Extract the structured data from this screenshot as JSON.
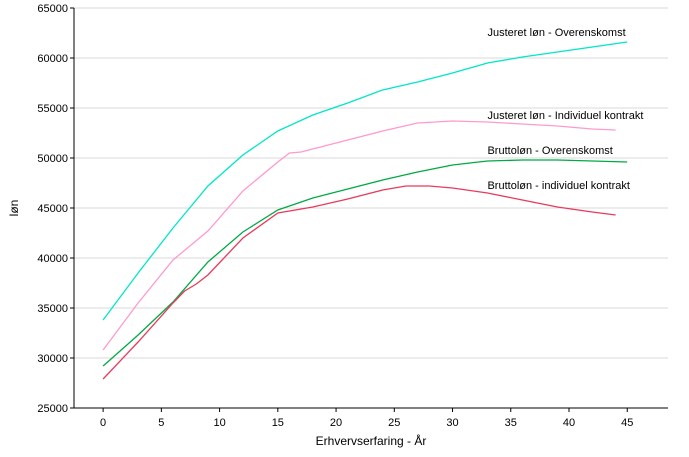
{
  "chart_data": {
    "type": "line",
    "xlabel": "Erhvervserfaring - År",
    "ylabel": "løn",
    "xlim": [
      -2.5,
      48.5
    ],
    "ylim": [
      25000,
      65000
    ],
    "xticks": [
      0,
      5,
      10,
      15,
      20,
      25,
      30,
      35,
      40,
      45
    ],
    "yticks": [
      25000,
      30000,
      35000,
      40000,
      45000,
      50000,
      55000,
      60000,
      65000
    ],
    "xtick_labels": [
      "0",
      "5",
      "10",
      "15",
      "20",
      "25",
      "30",
      "35",
      "40",
      "45"
    ],
    "ytick_labels": [
      "25000",
      "30000",
      "35000",
      "40000",
      "45000",
      "50000",
      "55000",
      "60000",
      "65000"
    ],
    "grid": "horizontal",
    "series": [
      {
        "name": "Justeret løn - Overenskomst",
        "color": "#00e6c8",
        "x": [
          0,
          3,
          6,
          9,
          12,
          15,
          18,
          21,
          24,
          27,
          30,
          33,
          36,
          39,
          42,
          45
        ],
        "values": [
          33800,
          38500,
          43000,
          47200,
          50300,
          52700,
          54300,
          55500,
          56800,
          57600,
          58500,
          59500,
          60100,
          60600,
          61100,
          61600
        ]
      },
      {
        "name": "Justeret løn - Individuel kontrakt",
        "color": "#ff9acd",
        "x": [
          0,
          3,
          6,
          9,
          12,
          15,
          16,
          17,
          18,
          21,
          24,
          27,
          30,
          33,
          36,
          39,
          42,
          44
        ],
        "values": [
          30800,
          35500,
          39800,
          42700,
          46700,
          49600,
          50500,
          50600,
          50900,
          51800,
          52700,
          53500,
          53700,
          53600,
          53400,
          53200,
          52900,
          52800
        ]
      },
      {
        "name": "Bruttoløn - Overenskomst",
        "color": "#00aa44",
        "x": [
          0,
          3,
          6,
          9,
          12,
          15,
          18,
          21,
          24,
          27,
          30,
          33,
          36,
          39,
          42,
          45
        ],
        "values": [
          29200,
          32300,
          35600,
          39600,
          42600,
          44800,
          46000,
          46900,
          47800,
          48600,
          49300,
          49700,
          49800,
          49800,
          49700,
          49600
        ]
      },
      {
        "name": "Bruttoløn - individuel kontrakt",
        "color": "#e83a5c",
        "x": [
          0,
          3,
          6,
          7,
          8,
          9,
          12,
          15,
          18,
          21,
          24,
          26,
          28,
          30,
          33,
          36,
          39,
          42,
          44
        ],
        "values": [
          27900,
          31600,
          35500,
          36700,
          37400,
          38300,
          42000,
          44500,
          45100,
          45900,
          46800,
          47200,
          47200,
          47000,
          46500,
          45800,
          45100,
          44600,
          44300
        ]
      }
    ],
    "annotations": [
      {
        "text": "Justeret løn - Overenskomst",
        "x": 33,
        "y": 62200
      },
      {
        "text": "Justeret løn - Individuel kontrakt",
        "x": 33,
        "y": 53900
      },
      {
        "text": "Bruttoløn - Overenskomst",
        "x": 33,
        "y": 50400
      },
      {
        "text": "Bruttoløn - individuel kontrakt",
        "x": 33,
        "y": 46900
      }
    ]
  }
}
